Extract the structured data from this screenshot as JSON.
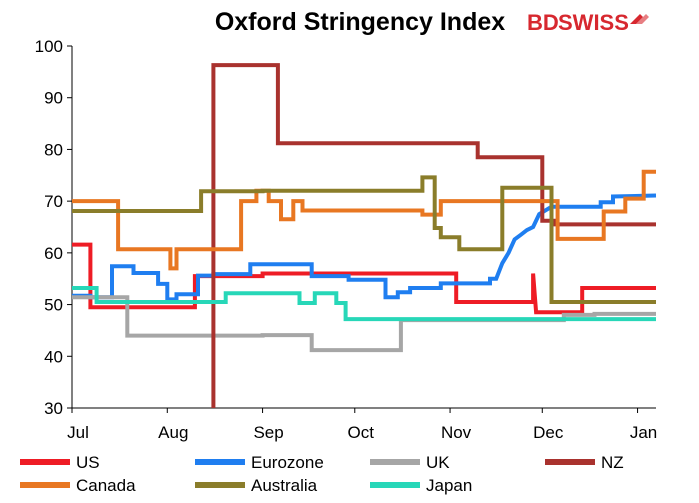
{
  "chart_data": {
    "type": "line",
    "title": "Oxford Stringency Index",
    "logo": {
      "text_a": "BD",
      "text_b": "SWISS",
      "color": "#d7282f",
      "icon": "arrow-logo-icon"
    },
    "xlabel": "",
    "ylabel": "",
    "ylim": [
      30,
      100
    ],
    "yticks": [
      30,
      40,
      50,
      60,
      70,
      80,
      90,
      100
    ],
    "x_range": [
      0,
      190
    ],
    "xticks": [
      {
        "label": "Jul",
        "x": 0
      },
      {
        "label": "Aug",
        "x": 31
      },
      {
        "label": "Sep",
        "x": 62
      },
      {
        "label": "Oct",
        "x": 92
      },
      {
        "label": "Nov",
        "x": 123
      },
      {
        "label": "Dec",
        "x": 153
      },
      {
        "label": "Jan",
        "x": 184
      }
    ],
    "grid": false,
    "legend_position": "bottom",
    "series": [
      {
        "name": "US",
        "color": "#ee1c25",
        "points": [
          [
            0,
            61.6
          ],
          [
            6,
            61.6
          ],
          [
            6,
            49.5
          ],
          [
            40,
            49.5
          ],
          [
            40,
            55.5
          ],
          [
            62,
            55.5
          ],
          [
            62,
            56
          ],
          [
            125,
            56
          ],
          [
            125,
            50.5
          ],
          [
            150,
            50.5
          ],
          [
            150,
            56
          ],
          [
            151,
            48.5
          ],
          [
            166,
            48.5
          ],
          [
            166,
            53.2
          ],
          [
            190,
            53.2
          ]
        ]
      },
      {
        "name": "Eurozone",
        "color": "#1f7ef0",
        "points": [
          [
            0,
            51.7
          ],
          [
            6,
            51.7
          ],
          [
            6,
            51.4
          ],
          [
            13,
            51.4
          ],
          [
            13,
            57.4
          ],
          [
            20,
            57.4
          ],
          [
            20,
            56.1
          ],
          [
            28,
            56.1
          ],
          [
            28,
            54
          ],
          [
            31,
            54
          ],
          [
            31,
            51
          ],
          [
            34,
            51
          ],
          [
            34,
            52
          ],
          [
            41,
            52
          ],
          [
            41,
            55.6
          ],
          [
            46,
            55.6
          ],
          [
            46,
            55.9
          ],
          [
            58,
            55.9
          ],
          [
            58,
            57.8
          ],
          [
            78,
            57.8
          ],
          [
            78,
            55.5
          ],
          [
            90,
            55.5
          ],
          [
            90,
            54.8
          ],
          [
            102,
            54.8
          ],
          [
            102,
            51.4
          ],
          [
            106,
            51.4
          ],
          [
            106,
            52.4
          ],
          [
            110,
            52.4
          ],
          [
            110,
            53.2
          ],
          [
            120,
            53.2
          ],
          [
            120,
            54.1
          ],
          [
            136,
            54.1
          ],
          [
            136,
            55
          ],
          [
            138,
            55
          ],
          [
            140,
            58
          ],
          [
            142,
            60
          ],
          [
            144,
            62.6
          ],
          [
            146,
            63.5
          ],
          [
            148,
            64.4
          ],
          [
            150,
            65
          ],
          [
            152,
            67.5
          ],
          [
            156,
            68.9
          ],
          [
            172,
            68.9
          ],
          [
            172,
            69.8
          ],
          [
            176,
            69.8
          ],
          [
            176,
            70.9
          ],
          [
            190,
            71.1
          ]
        ]
      },
      {
        "name": "UK",
        "color": "#a6a6a6",
        "points": [
          [
            0,
            51.4
          ],
          [
            18,
            51.4
          ],
          [
            18,
            44
          ],
          [
            62,
            44
          ],
          [
            62,
            44.1
          ],
          [
            78,
            44.1
          ],
          [
            78,
            41.2
          ],
          [
            107,
            41.2
          ],
          [
            107,
            47
          ],
          [
            160,
            47
          ],
          [
            160,
            48
          ],
          [
            170,
            48
          ],
          [
            170,
            48.2
          ],
          [
            190,
            48.2
          ]
        ]
      },
      {
        "name": "NZ",
        "color": "#a9322e",
        "points": [
          [
            46,
            30
          ],
          [
            46,
            96.3
          ],
          [
            67,
            96.3
          ],
          [
            67,
            81.2
          ],
          [
            132,
            81.2
          ],
          [
            132,
            78.5
          ],
          [
            153,
            78.5
          ],
          [
            153,
            66.2
          ],
          [
            157,
            66.2
          ],
          [
            157,
            65.5
          ],
          [
            190,
            65.5
          ]
        ]
      },
      {
        "name": "Canada",
        "color": "#e87722",
        "points": [
          [
            0,
            70
          ],
          [
            15,
            70
          ],
          [
            15,
            60.7
          ],
          [
            32,
            60.7
          ],
          [
            32,
            57
          ],
          [
            34,
            57
          ],
          [
            34,
            60.7
          ],
          [
            55,
            60.7
          ],
          [
            55,
            70
          ],
          [
            60,
            70
          ],
          [
            60,
            72
          ],
          [
            64,
            72
          ],
          [
            64,
            70
          ],
          [
            68,
            70
          ],
          [
            68,
            66.5
          ],
          [
            72,
            66.5
          ],
          [
            72,
            70
          ],
          [
            75,
            70
          ],
          [
            75,
            68.2
          ],
          [
            114,
            68.2
          ],
          [
            114,
            67.4
          ],
          [
            120,
            67.4
          ],
          [
            120,
            70
          ],
          [
            158,
            70
          ],
          [
            158,
            62.7
          ],
          [
            173,
            62.7
          ],
          [
            173,
            68
          ],
          [
            180,
            68
          ],
          [
            180,
            70.5
          ],
          [
            186,
            70.5
          ],
          [
            186,
            75.7
          ],
          [
            190,
            75.7
          ]
        ]
      },
      {
        "name": "Australia",
        "color": "#8a7d2a",
        "points": [
          [
            0,
            68.1
          ],
          [
            42,
            68.1
          ],
          [
            42,
            71.9
          ],
          [
            62,
            71.9
          ],
          [
            62,
            72
          ],
          [
            114,
            72
          ],
          [
            114,
            74.6
          ],
          [
            118,
            74.6
          ],
          [
            118,
            64.8
          ],
          [
            120,
            64.8
          ],
          [
            120,
            63
          ],
          [
            126,
            63
          ],
          [
            126,
            60.7
          ],
          [
            140,
            60.7
          ],
          [
            140,
            72.6
          ],
          [
            156,
            72.6
          ],
          [
            156,
            50.5
          ],
          [
            190,
            50.5
          ]
        ]
      },
      {
        "name": "Japan",
        "color": "#27d7b8",
        "points": [
          [
            0,
            53.2
          ],
          [
            8,
            53.2
          ],
          [
            8,
            50.5
          ],
          [
            50,
            50.5
          ],
          [
            50,
            52.2
          ],
          [
            74,
            52.2
          ],
          [
            74,
            50.3
          ],
          [
            79,
            50.3
          ],
          [
            79,
            52.2
          ],
          [
            86,
            52.2
          ],
          [
            86,
            50.3
          ],
          [
            89,
            50.3
          ],
          [
            89,
            47.2
          ],
          [
            190,
            47.2
          ]
        ]
      }
    ]
  }
}
